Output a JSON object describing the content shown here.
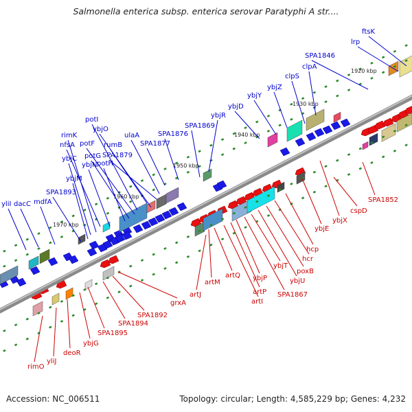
{
  "title": "Salmonella enterica subsp. enterica serovar Paratyphi A str....",
  "footer": {
    "accession": "Accession: NC_006511",
    "topology": "Topology: circular; Length: 4,585,229 bp; Genes: 4,232"
  },
  "colors": {
    "forward_label": "#0000cc",
    "reverse_label": "#cc0000",
    "backbone": "#8a8a8a",
    "tick": "#2a8a2a"
  },
  "kbp_markers": [
    "1920 kbp",
    "1930 kbp",
    "1940 kbp",
    "1950 kbp",
    "1960 kbp",
    "1970 kbp"
  ],
  "forward_genes": [
    "ftsK",
    "lrp",
    "SPA1846",
    "clpA",
    "clpS",
    "ybjZ",
    "ybjY",
    "ybjD",
    "ybjR",
    "SPA1869",
    "SPA1876",
    "SPA1877",
    "ulaA",
    "SPA1879",
    "rumB",
    "ybjO",
    "potI",
    "potF",
    "potG",
    "potH",
    "ybjN",
    "nfsA",
    "rimK",
    "ybjC",
    "ybjM",
    "SPA1893",
    "mdfA",
    "dacC",
    "yliI"
  ],
  "reverse_genes": [
    "SPA1852",
    "cspD",
    "ybjX",
    "ybjE",
    "hcp",
    "hcr",
    "poxB",
    "ybjU",
    "ybjT",
    "SPA1867",
    "ybjP",
    "artP",
    "artI",
    "artQ",
    "artM",
    "artJ",
    "grxA",
    "SPA1892",
    "SPA1894",
    "SPA1895",
    "ybjG",
    "deoR",
    "yliJ",
    "rimO"
  ]
}
